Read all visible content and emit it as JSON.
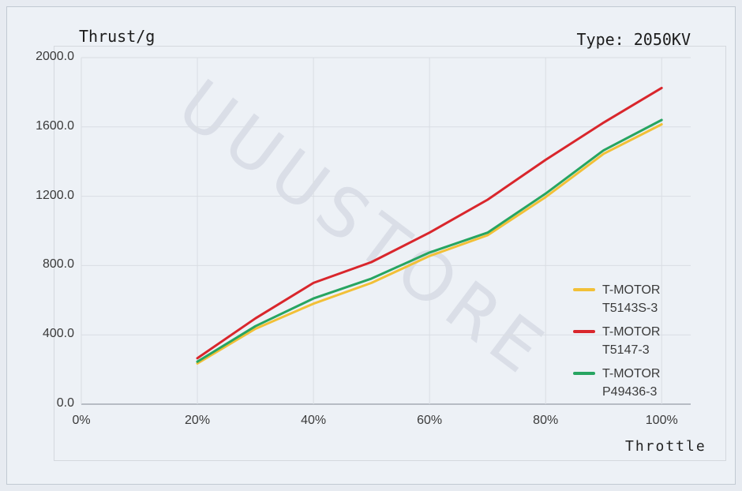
{
  "page": {
    "type_label": "Type: 2050KV",
    "watermark": "UUUSTORE",
    "background_color": "#e7ebf1",
    "panel_color": "#edf1f6"
  },
  "chart_data": {
    "type": "line",
    "title": "Thrust/g",
    "xlabel": "Throttle",
    "ylabel": "Thrust/g",
    "x": [
      20,
      30,
      40,
      50,
      60,
      70,
      80,
      90,
      100
    ],
    "x_unit": "%",
    "series": [
      {
        "name": "T-MOTOR T5143S-3",
        "color": "#f2c037",
        "values": [
          235,
          435,
          580,
          700,
          855,
          975,
          1195,
          1445,
          1615
        ]
      },
      {
        "name": "T-MOTOR T5147-3",
        "color": "#d9262c",
        "values": [
          265,
          495,
          700,
          820,
          990,
          1180,
          1410,
          1625,
          1825
        ]
      },
      {
        "name": "T-MOTOR P49436-3",
        "color": "#27a561",
        "values": [
          245,
          450,
          610,
          725,
          875,
          990,
          1215,
          1465,
          1640
        ]
      }
    ],
    "x_ticks": {
      "values": [
        0,
        20,
        40,
        60,
        80,
        100
      ],
      "labels": [
        "0%",
        "20%",
        "40%",
        "60%",
        "80%",
        "100%"
      ]
    },
    "y_ticks": {
      "values": [
        0,
        400,
        800,
        1200,
        1600,
        2000
      ],
      "labels": [
        "0.0",
        "400.0",
        "800.0",
        "1200.0",
        "1600.0",
        "2000.0"
      ]
    },
    "xlim": [
      0,
      105
    ],
    "ylim": [
      0,
      2000
    ],
    "grid": true,
    "legend_position": "right",
    "colors": {
      "gridline": "#d9dde3",
      "axis": "#a3aab3"
    }
  }
}
